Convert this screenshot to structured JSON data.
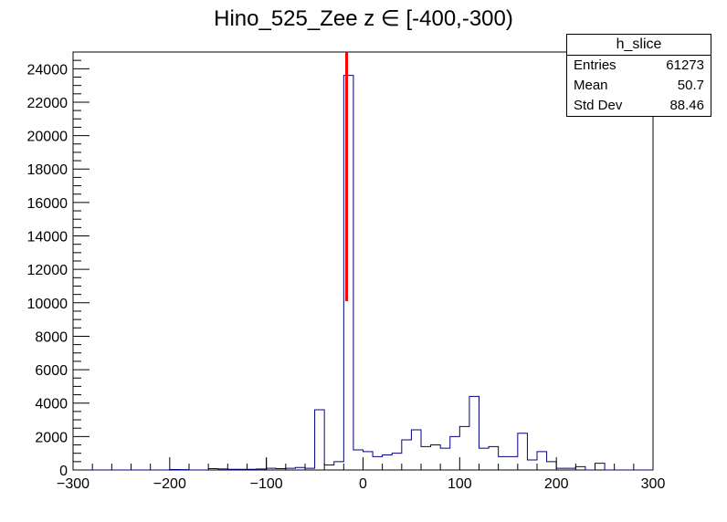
{
  "chart_data": {
    "type": "bar",
    "title": "Hino_525_Zee z  ∈ [-400,-300)",
    "xlabel": "",
    "ylabel": "",
    "xlim": [
      -300,
      300
    ],
    "ylim": [
      0,
      25000
    ],
    "x_ticks": [
      -300,
      -200,
      -100,
      0,
      100,
      200,
      300
    ],
    "y_ticks": [
      0,
      2000,
      4000,
      6000,
      8000,
      10000,
      12000,
      14000,
      16000,
      18000,
      20000,
      22000,
      24000
    ],
    "bin_edges": [
      -300,
      -290,
      -280,
      -270,
      -260,
      -250,
      -240,
      -230,
      -220,
      -210,
      -200,
      -190,
      -180,
      -170,
      -160,
      -150,
      -140,
      -130,
      -120,
      -110,
      -100,
      -90,
      -80,
      -70,
      -60,
      -50,
      -40,
      -30,
      -20,
      -10,
      0,
      10,
      20,
      30,
      40,
      50,
      60,
      70,
      80,
      90,
      100,
      110,
      120,
      130,
      140,
      150,
      160,
      170,
      180,
      190,
      200,
      210,
      220,
      230,
      240,
      250,
      260,
      270,
      280,
      290,
      300
    ],
    "values": [
      0,
      0,
      0,
      0,
      0,
      0,
      0,
      0,
      0,
      0,
      30,
      20,
      0,
      0,
      80,
      60,
      40,
      40,
      40,
      60,
      100,
      80,
      100,
      150,
      100,
      3600,
      300,
      500,
      23600,
      1200,
      1100,
      800,
      900,
      1000,
      1800,
      2400,
      1400,
      1500,
      1300,
      2000,
      2600,
      4400,
      1300,
      1400,
      800,
      800,
      2200,
      600,
      1100,
      500,
      100,
      100,
      200,
      0,
      400,
      0,
      0,
      0,
      0,
      0
    ],
    "error_bar_x": -100,
    "error_bar_range": [
      0,
      700
    ],
    "vertical_line": {
      "x": -17,
      "y_range": [
        10100,
        25000
      ],
      "color": "#ff0000"
    },
    "line_color": "#000080"
  },
  "stats": {
    "name": "h_slice",
    "entries_label": "Entries",
    "entries_value": "61273",
    "mean_label": "Mean",
    "mean_value": "50.7",
    "stddev_label": "Std Dev",
    "stddev_value": "88.46"
  }
}
